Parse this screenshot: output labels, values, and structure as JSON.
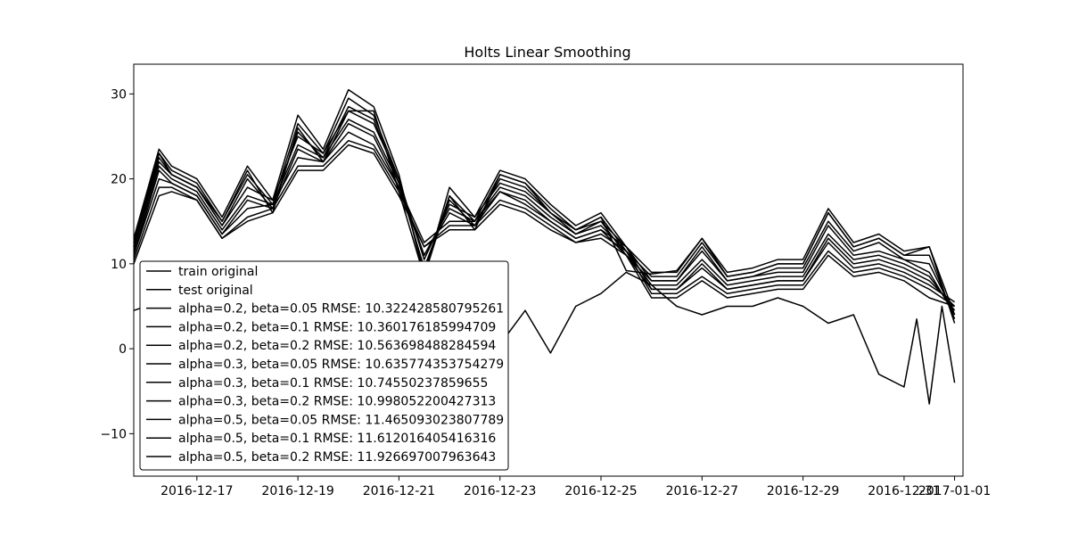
{
  "chart_data": {
    "type": "line",
    "title": "Holts Linear Smoothing",
    "xlabel": "",
    "ylabel": "",
    "x_start": "2016-12-15T18:00",
    "x_end": "2017-01-01T04:00",
    "ylim": [
      -15,
      33.5
    ],
    "yticks": [
      -10,
      0,
      10,
      20,
      30
    ],
    "xticks": [
      "2016-12-17",
      "2016-12-19",
      "2016-12-21",
      "2016-12-23",
      "2016-12-25",
      "2016-12-27",
      "2016-12-29",
      "2016-12-31",
      "2017-01-01"
    ],
    "xtick_labels": [
      "2016-12-17",
      "2016-12-19",
      "2016-12-21",
      "2016-12-23",
      "2016-12-25",
      "2016-12-27",
      "2016-12-29",
      "2016-12-31",
      "2017-01-01"
    ],
    "grid": false,
    "legend_position": "lower-left",
    "series": [
      {
        "name": "train original",
        "x": [
          "2016-12-15T18:00",
          "2016-12-16T06:00",
          "2016-12-16T12:00",
          "2016-12-17T00:00",
          "2016-12-17T12:00",
          "2016-12-18T00:00",
          "2016-12-18T12:00",
          "2016-12-19T00:00",
          "2016-12-19T12:00",
          "2016-12-20T00:00",
          "2016-12-20T12:00",
          "2016-12-21T00:00",
          "2016-12-21T12:00",
          "2016-12-22T00:00",
          "2016-12-22T12:00",
          "2016-12-23T00:00",
          "2016-12-23T12:00",
          "2016-12-24T00:00",
          "2016-12-24T12:00",
          "2016-12-25T00:00",
          "2016-12-25T12:00",
          "2016-12-26T00:00",
          "2016-12-26T12:00",
          "2016-12-27T00:00",
          "2016-12-27T12:00",
          "2016-12-28T00:00",
          "2016-12-28T12:00",
          "2016-12-29T00:00",
          "2016-12-29T12:00",
          "2016-12-30T00:00",
          "2016-12-30T12:00",
          "2016-12-31T00:00",
          "2016-12-31T12:00",
          "2017-01-01T00:00"
        ],
        "values": [
          12,
          23,
          20.5,
          19,
          15,
          21,
          16,
          26,
          22,
          28,
          28,
          18.5,
          8.5,
          18,
          14,
          20.5,
          19.5,
          16,
          14,
          15.5,
          9.2,
          8.8,
          9.2,
          13,
          8.5,
          9,
          10,
          10,
          16,
          12,
          13,
          11,
          12,
          4
        ]
      },
      {
        "name": "test original",
        "x": [
          "2016-12-15T18:00",
          "2016-12-16T00:00",
          "2016-12-16T06:00",
          "2016-12-16T12:00",
          "2016-12-17T00:00",
          "2016-12-17T12:00",
          "2016-12-18T00:00",
          "2016-12-18T12:00",
          "2016-12-19T00:00",
          "2016-12-19T12:00",
          "2016-12-20T00:00",
          "2016-12-20T12:00",
          "2016-12-21T00:00",
          "2016-12-21T12:00",
          "2016-12-22T00:00",
          "2016-12-22T12:00",
          "2016-12-23T00:00",
          "2016-12-23T12:00",
          "2016-12-24T00:00",
          "2016-12-24T12:00",
          "2016-12-25T00:00",
          "2016-12-25T12:00",
          "2016-12-26T00:00",
          "2016-12-26T12:00",
          "2016-12-27T00:00",
          "2016-12-27T12:00",
          "2016-12-28T00:00",
          "2016-12-28T12:00",
          "2016-12-29T00:00",
          "2016-12-29T12:00",
          "2016-12-30T00:00",
          "2016-12-30T12:00",
          "2016-12-31T00:00",
          "2016-12-31T06:00",
          "2016-12-31T12:00",
          "2016-12-31T18:00",
          "2017-01-01T00:00"
        ],
        "values": [
          4.5,
          5,
          4,
          3,
          1,
          -1,
          0,
          1.5,
          0.5,
          0,
          0.5,
          0,
          -0.5,
          -1,
          -0.5,
          0.5,
          0.5,
          4.5,
          -0.5,
          5,
          6.5,
          9,
          7.5,
          5,
          4,
          5,
          5,
          6,
          5,
          3,
          4,
          -3,
          -4.5,
          3.5,
          -6.5,
          5,
          -4
        ]
      },
      {
        "name": "alpha=0.2, beta=0.05 RMSE: 10.322428580795261",
        "x": [
          "2016-12-15T18:00",
          "2016-12-16T06:00",
          "2016-12-16T12:00",
          "2016-12-17T00:00",
          "2016-12-17T12:00",
          "2016-12-18T00:00",
          "2016-12-18T12:00",
          "2016-12-19T00:00",
          "2016-12-19T12:00",
          "2016-12-20T00:00",
          "2016-12-20T12:00",
          "2016-12-21T00:00",
          "2016-12-21T12:00",
          "2016-12-22T00:00",
          "2016-12-22T12:00",
          "2016-12-23T00:00",
          "2016-12-23T12:00",
          "2016-12-24T00:00",
          "2016-12-24T12:00",
          "2016-12-25T00:00",
          "2016-12-25T12:00",
          "2016-12-26T00:00",
          "2016-12-26T12:00",
          "2016-12-27T00:00",
          "2016-12-27T12:00",
          "2016-12-28T00:00",
          "2016-12-28T12:00",
          "2016-12-29T00:00",
          "2016-12-29T12:00",
          "2016-12-30T00:00",
          "2016-12-30T12:00",
          "2016-12-31T00:00",
          "2016-12-31T12:00",
          "2017-01-01T00:00"
        ],
        "values": [
          10,
          18,
          18.5,
          17.5,
          13,
          15,
          16,
          21,
          21,
          24,
          23,
          18,
          12,
          14,
          14,
          17,
          16,
          14,
          12.5,
          13,
          11,
          6,
          6,
          8,
          6,
          6.5,
          7,
          7,
          11,
          8.5,
          9,
          8,
          6,
          5
        ]
      },
      {
        "name": "alpha=0.2, beta=0.1 RMSE: 10.360176185994709",
        "x": [
          "2016-12-15T18:00",
          "2016-12-16T06:00",
          "2016-12-16T12:00",
          "2016-12-17T00:00",
          "2016-12-17T12:00",
          "2016-12-18T00:00",
          "2016-12-18T12:00",
          "2016-12-19T00:00",
          "2016-12-19T12:00",
          "2016-12-20T00:00",
          "2016-12-20T12:00",
          "2016-12-21T00:00",
          "2016-12-21T12:00",
          "2016-12-22T00:00",
          "2016-12-22T12:00",
          "2016-12-23T00:00",
          "2016-12-23T12:00",
          "2016-12-24T00:00",
          "2016-12-24T12:00",
          "2016-12-25T00:00",
          "2016-12-25T12:00",
          "2016-12-26T00:00",
          "2016-12-26T12:00",
          "2016-12-27T00:00",
          "2016-12-27T12:00",
          "2016-12-28T00:00",
          "2016-12-28T12:00",
          "2016-12-29T00:00",
          "2016-12-29T12:00",
          "2016-12-30T00:00",
          "2016-12-30T12:00",
          "2016-12-31T00:00",
          "2016-12-31T12:00",
          "2017-01-01T00:00"
        ],
        "values": [
          10.5,
          19,
          19,
          17.5,
          13,
          15.5,
          16.5,
          21.5,
          21.5,
          24.5,
          23.5,
          18.5,
          12,
          14.5,
          14.5,
          17.5,
          16.5,
          14.5,
          12.5,
          13.5,
          11.5,
          6.5,
          6.5,
          8.5,
          6.5,
          7,
          7.5,
          7.5,
          11.5,
          9,
          9.5,
          8.5,
          7,
          5
        ]
      },
      {
        "name": "alpha=0.2, beta=0.2 RMSE: 10.563698488284594",
        "x": [
          "2016-12-15T18:00",
          "2016-12-16T06:00",
          "2016-12-16T12:00",
          "2016-12-17T00:00",
          "2016-12-17T12:00",
          "2016-12-18T00:00",
          "2016-12-18T12:00",
          "2016-12-19T00:00",
          "2016-12-19T12:00",
          "2016-12-20T00:00",
          "2016-12-20T12:00",
          "2016-12-21T00:00",
          "2016-12-21T12:00",
          "2016-12-22T00:00",
          "2016-12-22T12:00",
          "2016-12-23T00:00",
          "2016-12-23T12:00",
          "2016-12-24T00:00",
          "2016-12-24T12:00",
          "2016-12-25T00:00",
          "2016-12-25T12:00",
          "2016-12-26T00:00",
          "2016-12-26T12:00",
          "2016-12-27T00:00",
          "2016-12-27T12:00",
          "2016-12-28T00:00",
          "2016-12-28T12:00",
          "2016-12-29T00:00",
          "2016-12-29T12:00",
          "2016-12-30T00:00",
          "2016-12-30T12:00",
          "2016-12-31T00:00",
          "2016-12-31T12:00",
          "2017-01-01T00:00"
        ],
        "values": [
          11,
          20,
          19.5,
          18,
          13.5,
          16.5,
          17,
          22.5,
          22,
          25.5,
          24,
          19,
          12.5,
          15,
          15,
          18.5,
          17,
          15,
          13,
          14,
          12,
          7,
          7,
          9.5,
          7,
          7.5,
          8,
          8,
          12.5,
          9.5,
          10,
          9,
          7.5,
          5.5
        ]
      },
      {
        "name": "alpha=0.3, beta=0.05 RMSE: 10.635774353754279",
        "x": [
          "2016-12-15T18:00",
          "2016-12-16T06:00",
          "2016-12-16T12:00",
          "2016-12-17T00:00",
          "2016-12-17T12:00",
          "2016-12-18T00:00",
          "2016-12-18T12:00",
          "2016-12-19T00:00",
          "2016-12-19T12:00",
          "2016-12-20T00:00",
          "2016-12-20T12:00",
          "2016-12-21T00:00",
          "2016-12-21T12:00",
          "2016-12-22T00:00",
          "2016-12-22T12:00",
          "2016-12-23T00:00",
          "2016-12-23T12:00",
          "2016-12-24T00:00",
          "2016-12-24T12:00",
          "2016-12-25T00:00",
          "2016-12-25T12:00",
          "2016-12-26T00:00",
          "2016-12-26T12:00",
          "2016-12-27T00:00",
          "2016-12-27T12:00",
          "2016-12-28T00:00",
          "2016-12-28T12:00",
          "2016-12-29T00:00",
          "2016-12-29T12:00",
          "2016-12-30T00:00",
          "2016-12-30T12:00",
          "2016-12-31T00:00",
          "2016-12-31T12:00",
          "2017-01-01T00:00"
        ],
        "values": [
          11,
          21,
          19.5,
          18,
          13.5,
          17.5,
          16.5,
          23.5,
          22,
          26.5,
          25,
          19,
          11,
          16,
          14.5,
          18.5,
          17.5,
          15,
          13,
          14,
          11,
          7,
          7,
          10,
          7,
          7.5,
          8,
          8,
          13,
          10,
          10.5,
          9.5,
          8,
          5
        ]
      },
      {
        "name": "alpha=0.3, beta=0.1 RMSE: 10.74550237859655",
        "x": [
          "2016-12-15T18:00",
          "2016-12-16T06:00",
          "2016-12-16T12:00",
          "2016-12-17T00:00",
          "2016-12-17T12:00",
          "2016-12-18T00:00",
          "2016-12-18T12:00",
          "2016-12-19T00:00",
          "2016-12-19T12:00",
          "2016-12-20T00:00",
          "2016-12-20T12:00",
          "2016-12-21T00:00",
          "2016-12-21T12:00",
          "2016-12-22T00:00",
          "2016-12-22T12:00",
          "2016-12-23T00:00",
          "2016-12-23T12:00",
          "2016-12-24T00:00",
          "2016-12-24T12:00",
          "2016-12-25T00:00",
          "2016-12-25T12:00",
          "2016-12-26T00:00",
          "2016-12-26T12:00",
          "2016-12-27T00:00",
          "2016-12-27T12:00",
          "2016-12-28T00:00",
          "2016-12-28T12:00",
          "2016-12-29T00:00",
          "2016-12-29T12:00",
          "2016-12-30T00:00",
          "2016-12-30T12:00",
          "2016-12-31T00:00",
          "2016-12-31T12:00",
          "2017-01-01T00:00"
        ],
        "values": [
          11.5,
          21.5,
          20,
          18.5,
          14,
          18,
          17,
          24,
          22.5,
          27,
          25.5,
          19.5,
          11,
          16.5,
          15,
          19,
          18,
          15.5,
          13.5,
          14.5,
          11.5,
          7.5,
          7.5,
          10.5,
          7.5,
          8,
          8.5,
          8.5,
          13.5,
          10.5,
          11,
          10,
          8.5,
          4.5
        ]
      },
      {
        "name": "alpha=0.3, beta=0.2 RMSE: 10.998052200427313",
        "x": [
          "2016-12-15T18:00",
          "2016-12-16T06:00",
          "2016-12-16T12:00",
          "2016-12-17T00:00",
          "2016-12-17T12:00",
          "2016-12-18T00:00",
          "2016-12-18T12:00",
          "2016-12-19T00:00",
          "2016-12-19T12:00",
          "2016-12-20T00:00",
          "2016-12-20T12:00",
          "2016-12-21T00:00",
          "2016-12-21T12:00",
          "2016-12-22T00:00",
          "2016-12-22T12:00",
          "2016-12-23T00:00",
          "2016-12-23T12:00",
          "2016-12-24T00:00",
          "2016-12-24T12:00",
          "2016-12-25T00:00",
          "2016-12-25T12:00",
          "2016-12-26T00:00",
          "2016-12-26T12:00",
          "2016-12-27T00:00",
          "2016-12-27T12:00",
          "2016-12-28T00:00",
          "2016-12-28T12:00",
          "2016-12-29T00:00",
          "2016-12-29T12:00",
          "2016-12-30T00:00",
          "2016-12-30T12:00",
          "2016-12-31T00:00",
          "2016-12-31T12:00",
          "2017-01-01T00:00"
        ],
        "values": [
          12,
          22,
          20.5,
          19,
          14.5,
          19,
          17.5,
          25,
          23,
          28,
          26.5,
          20,
          10.5,
          17,
          15.5,
          19.5,
          18.5,
          16,
          14,
          15,
          12,
          8,
          8,
          11.5,
          8,
          8.5,
          9,
          9,
          14.5,
          11,
          11.5,
          10.5,
          9,
          4
        ]
      },
      {
        "name": "alpha=0.5, beta=0.05 RMSE: 11.465093023807789",
        "x": [
          "2016-12-15T18:00",
          "2016-12-16T06:00",
          "2016-12-16T12:00",
          "2016-12-17T00:00",
          "2016-12-17T12:00",
          "2016-12-18T00:00",
          "2016-12-18T12:00",
          "2016-12-19T00:00",
          "2016-12-19T12:00",
          "2016-12-20T00:00",
          "2016-12-20T12:00",
          "2016-12-21T00:00",
          "2016-12-21T12:00",
          "2016-12-22T00:00",
          "2016-12-22T12:00",
          "2016-12-23T00:00",
          "2016-12-23T12:00",
          "2016-12-24T00:00",
          "2016-12-24T12:00",
          "2016-12-25T00:00",
          "2016-12-25T12:00",
          "2016-12-26T00:00",
          "2016-12-26T12:00",
          "2016-12-27T00:00",
          "2016-12-27T12:00",
          "2016-12-28T00:00",
          "2016-12-28T12:00",
          "2016-12-29T00:00",
          "2016-12-29T12:00",
          "2016-12-30T00:00",
          "2016-12-30T12:00",
          "2016-12-31T00:00",
          "2016-12-31T12:00",
          "2017-01-01T00:00"
        ],
        "values": [
          12,
          22.5,
          20.5,
          19,
          14.5,
          20,
          16.5,
          25.5,
          22.5,
          28.5,
          27,
          19.5,
          9.5,
          17.5,
          14.5,
          20,
          19,
          16,
          13.5,
          15,
          11,
          8,
          8,
          12,
          8,
          8.5,
          9.5,
          9.5,
          15,
          11.5,
          12.5,
          10.5,
          10,
          4
        ]
      },
      {
        "name": "alpha=0.5, beta=0.1 RMSE: 11.612016405416316",
        "x": [
          "2016-12-15T18:00",
          "2016-12-16T06:00",
          "2016-12-16T12:00",
          "2016-12-17T00:00",
          "2016-12-17T12:00",
          "2016-12-18T00:00",
          "2016-12-18T12:00",
          "2016-12-19T00:00",
          "2016-12-19T12:00",
          "2016-12-20T00:00",
          "2016-12-20T12:00",
          "2016-12-21T00:00",
          "2016-12-21T12:00",
          "2016-12-22T00:00",
          "2016-12-22T12:00",
          "2016-12-23T00:00",
          "2016-12-23T12:00",
          "2016-12-24T00:00",
          "2016-12-24T12:00",
          "2016-12-25T00:00",
          "2016-12-25T12:00",
          "2016-12-26T00:00",
          "2016-12-26T12:00",
          "2016-12-27T00:00",
          "2016-12-27T12:00",
          "2016-12-28T00:00",
          "2016-12-28T12:00",
          "2016-12-29T00:00",
          "2016-12-29T12:00",
          "2016-12-30T00:00",
          "2016-12-30T12:00",
          "2016-12-31T00:00",
          "2016-12-31T12:00",
          "2017-01-01T00:00"
        ],
        "values": [
          12.5,
          23,
          21,
          19.5,
          15,
          20.5,
          17,
          26.5,
          23,
          29.5,
          27.5,
          20,
          9,
          18,
          15,
          20.5,
          19.5,
          16.5,
          14,
          15.5,
          11.5,
          8.5,
          8.5,
          12.5,
          8.5,
          9,
          10,
          10,
          16,
          12,
          13,
          11,
          11,
          3.5
        ]
      },
      {
        "name": "alpha=0.5, beta=0.2 RMSE: 11.926697007963643",
        "x": [
          "2016-12-15T18:00",
          "2016-12-16T06:00",
          "2016-12-16T12:00",
          "2016-12-17T00:00",
          "2016-12-17T12:00",
          "2016-12-18T00:00",
          "2016-12-18T12:00",
          "2016-12-19T00:00",
          "2016-12-19T12:00",
          "2016-12-20T00:00",
          "2016-12-20T12:00",
          "2016-12-21T00:00",
          "2016-12-21T12:00",
          "2016-12-22T00:00",
          "2016-12-22T12:00",
          "2016-12-23T00:00",
          "2016-12-23T12:00",
          "2016-12-24T00:00",
          "2016-12-24T12:00",
          "2016-12-25T00:00",
          "2016-12-25T12:00",
          "2016-12-26T00:00",
          "2016-12-26T12:00",
          "2016-12-27T00:00",
          "2016-12-27T12:00",
          "2016-12-28T00:00",
          "2016-12-28T12:00",
          "2016-12-29T00:00",
          "2016-12-29T12:00",
          "2016-12-30T00:00",
          "2016-12-30T12:00",
          "2016-12-31T00:00",
          "2016-12-31T12:00",
          "2017-01-01T00:00"
        ],
        "values": [
          13,
          23.5,
          21.5,
          20,
          15.5,
          21.5,
          17.5,
          27.5,
          23.5,
          30.5,
          28.5,
          20.5,
          8.5,
          19,
          15.5,
          21,
          20,
          17,
          14.5,
          16,
          12,
          9,
          9,
          13,
          9,
          9.5,
          10.5,
          10.5,
          16.5,
          12.5,
          13.5,
          11.5,
          12,
          3
        ]
      }
    ]
  }
}
